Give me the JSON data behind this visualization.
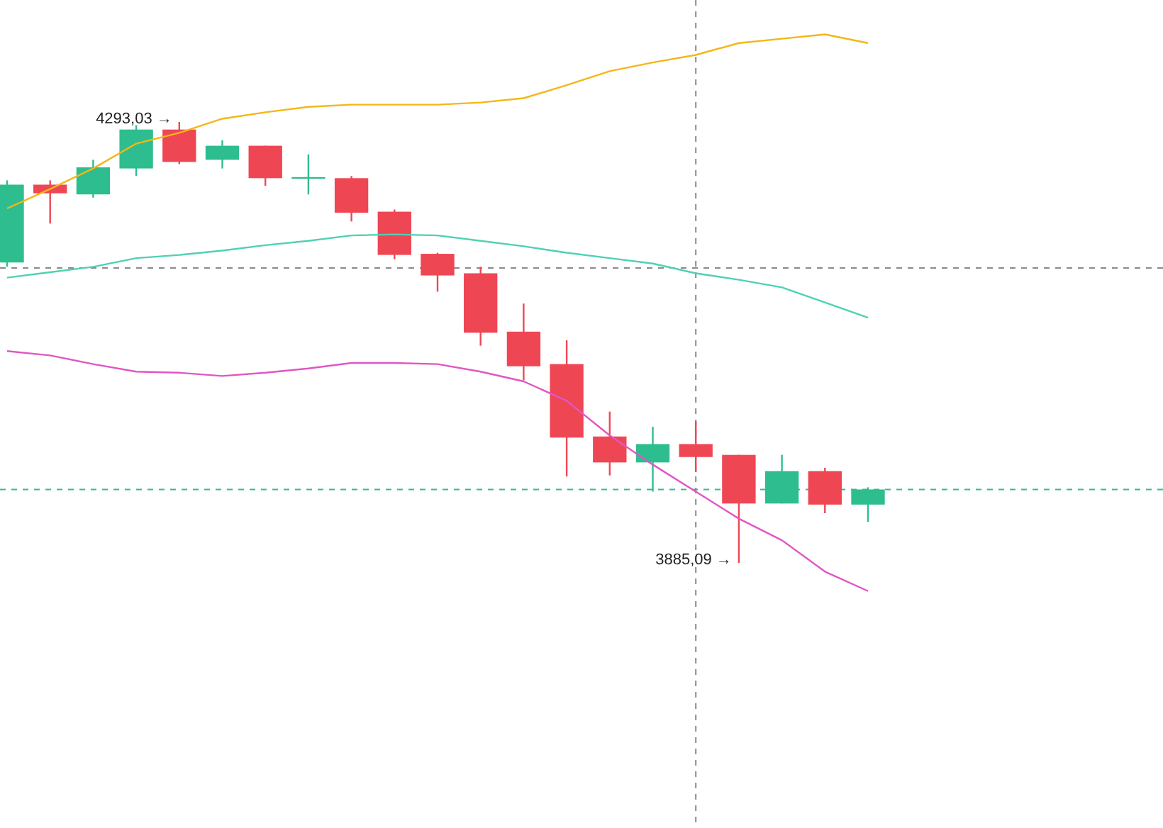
{
  "chart_data": {
    "type": "candlestick",
    "categories": [
      null,
      null,
      null,
      null,
      null,
      null,
      null,
      null,
      null,
      null,
      null,
      null,
      null,
      null,
      null,
      null,
      null,
      null,
      null,
      null,
      null
    ],
    "ohlc": [
      [
        4163,
        4239,
        4159,
        4235
      ],
      [
        4235,
        4239,
        4199,
        4227
      ],
      [
        4226,
        4258,
        4223,
        4251
      ],
      [
        4250,
        4290,
        4243,
        4286
      ],
      [
        4286,
        4293.03,
        4254,
        4256
      ],
      [
        4258,
        4276,
        4250,
        4271
      ],
      [
        4271,
        4271,
        4234,
        4241
      ],
      [
        4241,
        4263,
        4226,
        4242
      ],
      [
        4241,
        4243,
        4201,
        4209
      ],
      [
        4210,
        4212,
        4166,
        4170
      ],
      [
        4171,
        4172,
        4136,
        4151
      ],
      [
        4153,
        4159,
        4086,
        4098
      ],
      [
        4099,
        4125,
        4054,
        4067
      ],
      [
        4069,
        4091,
        3965,
        4001
      ],
      [
        4002,
        4025,
        3966,
        3978
      ],
      [
        3978,
        4011,
        3951,
        3995
      ],
      [
        3995,
        4016,
        3969,
        3983
      ],
      [
        3985,
        3985,
        3885.09,
        3940
      ],
      [
        3940,
        3985,
        3940,
        3970
      ],
      [
        3970,
        3973,
        3931,
        3939
      ],
      [
        3939,
        3955,
        3923,
        3953
      ]
    ],
    "colors": [
      "#2ebd8f",
      "#ef4654",
      "#2ebd8f",
      "#2ebd8f",
      "#ef4654",
      "#2ebd8f",
      "#ef4654",
      "#2ebd8f",
      "#ef4654",
      "#ef4654",
      "#ef4654",
      "#ef4654",
      "#ef4654",
      "#ef4654",
      "#ef4654",
      "#2ebd8f",
      "#ef4654",
      "#ef4654",
      "#2ebd8f",
      "#ef4654",
      "#2ebd8f"
    ],
    "series": [
      {
        "type": "line",
        "color": "#f5b616",
        "values": [
          4213,
          4231,
          4250,
          4273,
          4283,
          4296,
          4302,
          4307,
          4309,
          4309,
          4309,
          4311,
          4315,
          4327,
          4340,
          4348,
          4355,
          4366,
          4370,
          4374,
          4366
        ]
      },
      {
        "type": "line",
        "color": "#4fd1b2",
        "values": [
          4149,
          4154,
          4159,
          4167,
          4170,
          4174,
          4179,
          4183,
          4188,
          4189,
          4188,
          4183,
          4178,
          4172,
          4167,
          4162,
          4153,
          4147,
          4140,
          4126,
          4112
        ]
      },
      {
        "type": "line",
        "color": "#e056c4",
        "values": [
          4081,
          4077,
          4069,
          4062,
          4061,
          4058,
          4061,
          4065,
          4070,
          4070,
          4069,
          4062,
          4053,
          4035,
          4003,
          3976,
          3951,
          3926,
          3906,
          3877,
          3859
        ]
      }
    ],
    "ref_lines": [
      {
        "axis": "y",
        "value": 4158,
        "color": "#8a8a8a",
        "line_style": "dashed"
      },
      {
        "axis": "y",
        "value": 3953,
        "color": "#2ebd8f",
        "line_style": "dashed"
      }
    ],
    "annotations": [
      "4293,03 →",
      "3885,09 →"
    ]
  }
}
